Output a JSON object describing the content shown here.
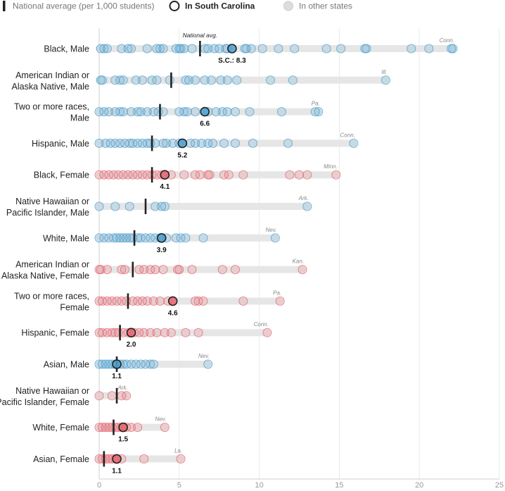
{
  "chart_data": {
    "type": "scatter",
    "legend": {
      "national": "National average (per 1,000 students)",
      "sc": "In South Carolina",
      "other": "In other states"
    },
    "national_avg_label": "National avg.",
    "sc_prefix": "S.C.: ",
    "xlim": [
      0,
      25
    ],
    "x_ticks": [
      0,
      5,
      10,
      15,
      20,
      25
    ],
    "colors": {
      "male": "#4a9fd0",
      "female": "#e8646e",
      "track": "#e6e6e6",
      "national": "#222222"
    },
    "rows": [
      {
        "label": [
          "Black, Male"
        ],
        "group": "male",
        "national": 6.3,
        "sc": 8.3,
        "sc_label": "8.3",
        "max": 22.1,
        "max_state": "Conn.",
        "others": [
          0.1,
          0.3,
          0.5,
          1.4,
          1.8,
          2.0,
          3.0,
          3.6,
          3.8,
          4.0,
          4.8,
          5.0,
          5.1,
          5.3,
          5.8,
          6.6,
          6.8,
          7.2,
          7.5,
          7.9,
          8.0,
          9.1,
          9.2,
          9.5,
          10.2,
          11.2,
          12.2,
          14.2,
          15.1,
          16.6,
          16.7,
          19.5,
          20.6,
          22.0,
          22.1
        ]
      },
      {
        "label": [
          "American Indian or",
          "Alaska Native, Male"
        ],
        "group": "male",
        "national": 4.5,
        "sc": null,
        "sc_label": "",
        "max": 17.9,
        "max_state": "Ill.",
        "others": [
          0.1,
          0.2,
          1.0,
          1.3,
          1.5,
          2.3,
          2.7,
          3.3,
          3.6,
          4.4,
          5.4,
          5.6,
          6.0,
          6.6,
          7.0,
          7.6,
          8.0,
          8.6,
          10.7,
          12.1,
          17.9
        ]
      },
      {
        "label": [
          "Two or more races,",
          "Male"
        ],
        "group": "male",
        "national": 3.8,
        "sc": 6.6,
        "sc_label": "6.6",
        "max": 13.7,
        "max_state": "Pa.",
        "others": [
          0.0,
          0.3,
          0.6,
          1.0,
          1.3,
          1.5,
          2.0,
          2.4,
          2.6,
          3.0,
          3.4,
          3.7,
          4.0,
          5.0,
          5.3,
          5.5,
          6.0,
          6.8,
          7.3,
          7.7,
          8.0,
          8.5,
          9.4,
          11.4,
          13.5,
          13.7
        ]
      },
      {
        "label": [
          "Hispanic, Male"
        ],
        "group": "male",
        "national": 3.3,
        "sc": 5.2,
        "sc_label": "5.2",
        "max": 15.9,
        "max_state": "Conn.",
        "others": [
          0.0,
          0.4,
          0.7,
          1.0,
          1.3,
          1.6,
          1.9,
          2.1,
          2.4,
          2.7,
          3.0,
          3.2,
          3.5,
          4.0,
          4.2,
          4.6,
          5.0,
          5.7,
          6.0,
          6.4,
          6.8,
          7.1,
          7.8,
          8.5,
          9.6,
          11.8,
          15.9
        ]
      },
      {
        "label": [
          "Black, Female"
        ],
        "group": "female",
        "national": 3.3,
        "sc": 4.1,
        "sc_label": "4.1",
        "max": 14.8,
        "max_state": "Minn.",
        "others": [
          0.0,
          0.3,
          0.6,
          0.9,
          1.2,
          1.5,
          1.8,
          2.1,
          2.4,
          2.7,
          3.0,
          3.3,
          3.6,
          3.9,
          4.5,
          5.3,
          6.0,
          6.3,
          6.8,
          6.9,
          7.8,
          8.1,
          9.0,
          11.9,
          12.5,
          13.0,
          14.8
        ]
      },
      {
        "label": [
          "Native Hawaiian or",
          "Pacific Islander, Male"
        ],
        "group": "male",
        "national": 2.9,
        "sc": null,
        "sc_label": "",
        "max": 13.0,
        "max_state": "Ark.",
        "others": [
          0.0,
          1.0,
          1.9,
          3.5,
          3.9,
          4.1,
          13.0
        ]
      },
      {
        "label": [
          "White, Male"
        ],
        "group": "male",
        "national": 2.2,
        "sc": 3.9,
        "sc_label": "3.9",
        "max": 11.0,
        "max_state": "Nev.",
        "others": [
          0.0,
          0.3,
          0.6,
          0.9,
          1.1,
          1.3,
          1.5,
          1.7,
          1.9,
          2.1,
          2.4,
          2.6,
          2.9,
          3.2,
          3.5,
          3.8,
          4.2,
          4.8,
          5.1,
          5.4,
          6.5,
          11.0
        ]
      },
      {
        "label": [
          "American Indian or",
          "Alaska Native, Female"
        ],
        "group": "female",
        "national": 2.1,
        "sc": null,
        "sc_label": "",
        "max": 12.7,
        "max_state": "Kan.",
        "others": [
          0.0,
          0.1,
          0.5,
          1.4,
          1.6,
          2.5,
          2.8,
          3.2,
          3.5,
          4.0,
          4.9,
          5.0,
          5.8,
          7.7,
          8.5,
          12.7
        ]
      },
      {
        "label": [
          "Two or more races,",
          "Female"
        ],
        "group": "female",
        "national": 1.8,
        "sc": 4.6,
        "sc_label": "4.6",
        "max": 11.3,
        "max_state": "Pa.",
        "others": [
          0.0,
          0.2,
          0.5,
          0.8,
          1.1,
          1.4,
          1.7,
          2.1,
          2.4,
          2.7,
          3.0,
          3.4,
          3.8,
          4.3,
          6.0,
          6.2,
          6.5,
          9.0,
          11.3
        ]
      },
      {
        "label": [
          "Hispanic, Female"
        ],
        "group": "female",
        "national": 1.3,
        "sc": 2.0,
        "sc_label": "2.0",
        "max": 10.5,
        "max_state": "Conn.",
        "others": [
          0.0,
          0.2,
          0.5,
          0.8,
          1.0,
          1.2,
          1.5,
          1.8,
          2.2,
          2.5,
          2.8,
          3.2,
          3.6,
          4.1,
          4.5,
          5.4,
          6.2,
          10.5
        ]
      },
      {
        "label": [
          "Asian, Male"
        ],
        "group": "male",
        "national": 1.1,
        "sc": 1.1,
        "sc_label": "1.1",
        "max": 6.8,
        "max_state": "Nev.",
        "others": [
          0.0,
          0.2,
          0.4,
          0.6,
          0.8,
          1.0,
          1.3,
          1.5,
          1.7,
          2.0,
          2.3,
          2.6,
          2.9,
          3.2,
          3.4,
          6.8
        ]
      },
      {
        "label": [
          "Native Hawaiian or",
          "Pacific Islander, Female"
        ],
        "group": "female",
        "national": 1.1,
        "sc": null,
        "sc_label": "",
        "max": 1.7,
        "max_state": "Ark.",
        "others": [
          0.0,
          0.8,
          1.4,
          1.7
        ]
      },
      {
        "label": [
          "White, Female"
        ],
        "group": "female",
        "national": 0.9,
        "sc": 1.5,
        "sc_label": "1.5",
        "max": 4.1,
        "max_state": "Nev.",
        "others": [
          0.0,
          0.2,
          0.4,
          0.6,
          0.8,
          1.0,
          1.2,
          1.4,
          1.7,
          2.0,
          2.4,
          4.1
        ]
      },
      {
        "label": [
          "Asian, Female"
        ],
        "group": "female",
        "national": 0.3,
        "sc": 1.1,
        "sc_label": "1.1",
        "max": 5.1,
        "max_state": "La.",
        "others": [
          0.0,
          0.2,
          0.4,
          0.6,
          0.8,
          1.0,
          1.4,
          2.8,
          5.1
        ]
      }
    ]
  }
}
